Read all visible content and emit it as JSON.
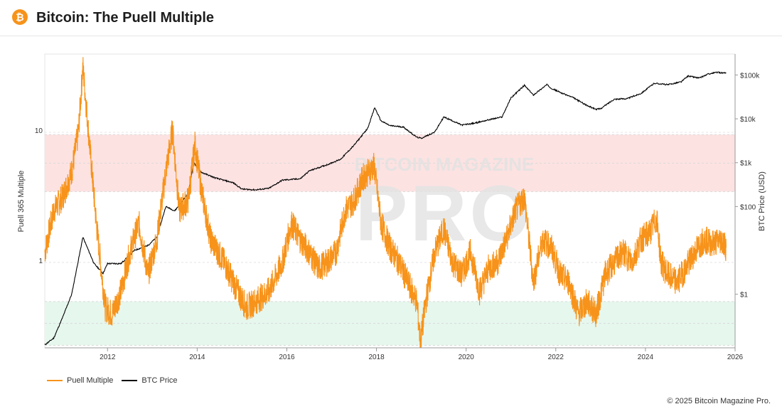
{
  "header": {
    "logo_icon": "bitcoin-logo-icon",
    "logo_glyph": "₿",
    "title": "Bitcoin: The Puell Multiple"
  },
  "watermark": {
    "top": "BITCOIN MAGAZINE",
    "big": "PRO"
  },
  "colors": {
    "puell": "#f7931a",
    "btc": "#000000",
    "red_zone": "#fde2e2",
    "green_zone": "#e6f7ee"
  },
  "chart_data": {
    "type": "line",
    "title": "Bitcoin: The Puell Multiple",
    "xlabel": "",
    "ylabel_left": "Puell 365 Multiple",
    "ylabel_right": "BTC Price (USD)",
    "x_range": [
      2010.6,
      2026.0
    ],
    "x_ticks": [
      "2012",
      "2014",
      "2016",
      "2018",
      "2020",
      "2022",
      "2024",
      "2026"
    ],
    "y_left_scale": "log",
    "y_left_range": [
      0.22,
      40
    ],
    "y_left_ticks": [
      "10",
      "1"
    ],
    "y_right_scale": "log",
    "y_right_range": [
      0.06,
      300000
    ],
    "y_right_ticks": [
      "$100k",
      "$10k",
      "$1k",
      "$100",
      "$1"
    ],
    "bands": [
      {
        "name": "overvalued-zone",
        "range": [
          3.5,
          9.6
        ],
        "color": "#fde2e2"
      },
      {
        "name": "undervalued-zone",
        "range": [
          0.23,
          0.5
        ],
        "color": "#e6f7ee"
      }
    ],
    "legend": [
      "Puell Multiple",
      "BTC Price"
    ],
    "series": [
      {
        "name": "Puell Multiple",
        "axis": "left",
        "color": "#f7931a",
        "x": [
          2010.6,
          2010.8,
          2011.0,
          2011.2,
          2011.35,
          2011.45,
          2011.6,
          2011.75,
          2011.95,
          2012.1,
          2012.3,
          2012.5,
          2012.7,
          2012.9,
          2013.1,
          2013.3,
          2013.45,
          2013.6,
          2013.8,
          2013.95,
          2014.1,
          2014.3,
          2014.6,
          2014.9,
          2015.1,
          2015.3,
          2015.6,
          2015.9,
          2016.1,
          2016.3,
          2016.5,
          2016.7,
          2016.9,
          2017.1,
          2017.3,
          2017.5,
          2017.7,
          2017.95,
          2018.1,
          2018.3,
          2018.5,
          2018.7,
          2018.9,
          2018.98,
          2019.1,
          2019.3,
          2019.5,
          2019.7,
          2019.9,
          2020.1,
          2020.3,
          2020.5,
          2020.7,
          2020.9,
          2021.1,
          2021.3,
          2021.5,
          2021.7,
          2021.9,
          2022.1,
          2022.3,
          2022.5,
          2022.7,
          2022.9,
          2023.1,
          2023.3,
          2023.5,
          2023.7,
          2023.9,
          2024.1,
          2024.25,
          2024.35,
          2024.5,
          2024.7,
          2024.9,
          2025.1,
          2025.3,
          2025.5,
          2025.7,
          2025.8
        ],
        "values": [
          1.2,
          2.5,
          3.2,
          5.0,
          10.0,
          32.0,
          8.0,
          2.0,
          0.45,
          0.4,
          0.6,
          1.2,
          2.0,
          0.8,
          1.5,
          5.0,
          10.5,
          2.5,
          3.0,
          8.0,
          3.5,
          1.5,
          1.0,
          0.6,
          0.45,
          0.5,
          0.6,
          1.0,
          2.0,
          1.5,
          1.2,
          0.9,
          1.0,
          1.2,
          2.5,
          3.0,
          4.5,
          5.5,
          2.0,
          1.3,
          1.0,
          0.7,
          0.5,
          0.24,
          0.5,
          1.2,
          1.8,
          1.0,
          0.8,
          1.2,
          0.6,
          0.9,
          1.0,
          1.5,
          2.5,
          3.2,
          0.7,
          1.5,
          1.3,
          0.8,
          0.7,
          0.4,
          0.5,
          0.4,
          0.8,
          1.0,
          1.2,
          1.0,
          1.5,
          1.7,
          2.2,
          1.0,
          0.8,
          0.7,
          0.9,
          1.2,
          1.5,
          1.4,
          1.5,
          1.3
        ]
      },
      {
        "name": "BTC Price",
        "axis": "right",
        "color": "#000000",
        "x": [
          2010.6,
          2010.8,
          2011.0,
          2011.2,
          2011.45,
          2011.7,
          2011.9,
          2012.0,
          2012.3,
          2012.6,
          2012.9,
          2013.1,
          2013.3,
          2013.5,
          2013.8,
          2013.92,
          2014.1,
          2014.4,
          2014.8,
          2015.0,
          2015.3,
          2015.6,
          2015.9,
          2016.3,
          2016.5,
          2016.9,
          2017.2,
          2017.5,
          2017.8,
          2017.96,
          2018.1,
          2018.3,
          2018.6,
          2018.9,
          2019.0,
          2019.3,
          2019.5,
          2019.7,
          2019.9,
          2020.2,
          2020.5,
          2020.8,
          2021.0,
          2021.3,
          2021.5,
          2021.8,
          2021.9,
          2022.1,
          2022.4,
          2022.7,
          2022.9,
          2023.0,
          2023.3,
          2023.6,
          2023.9,
          2024.2,
          2024.5,
          2024.8,
          2024.95,
          2025.2,
          2025.4,
          2025.6,
          2025.8
        ],
        "values": [
          0.07,
          0.1,
          0.3,
          1.0,
          20.0,
          5.0,
          3.0,
          5.0,
          5.0,
          10.0,
          13.0,
          20.0,
          100.0,
          80.0,
          200.0,
          1000.0,
          600.0,
          450.0,
          350.0,
          250.0,
          240.0,
          260.0,
          400.0,
          430.0,
          650.0,
          900.0,
          1200.0,
          2500.0,
          6000.0,
          18000.0,
          9000.0,
          7000.0,
          6500.0,
          3800.0,
          3600.0,
          5000.0,
          11000.0,
          9000.0,
          7200.0,
          8000.0,
          9500.0,
          11000.0,
          30000.0,
          58000.0,
          35000.0,
          60000.0,
          50000.0,
          40000.0,
          30000.0,
          20000.0,
          16500.0,
          17000.0,
          28000.0,
          29000.0,
          38000.0,
          65000.0,
          60000.0,
          70000.0,
          95000.0,
          85000.0,
          105000.0,
          115000.0,
          110000.0
        ]
      }
    ]
  },
  "legend": {
    "items": [
      {
        "label": "Puell Multiple",
        "color": "#f7931a"
      },
      {
        "label": "BTC Price",
        "color": "#000000"
      }
    ]
  },
  "footer": {
    "copyright": "© 2025 Bitcoin Magazine Pro."
  }
}
